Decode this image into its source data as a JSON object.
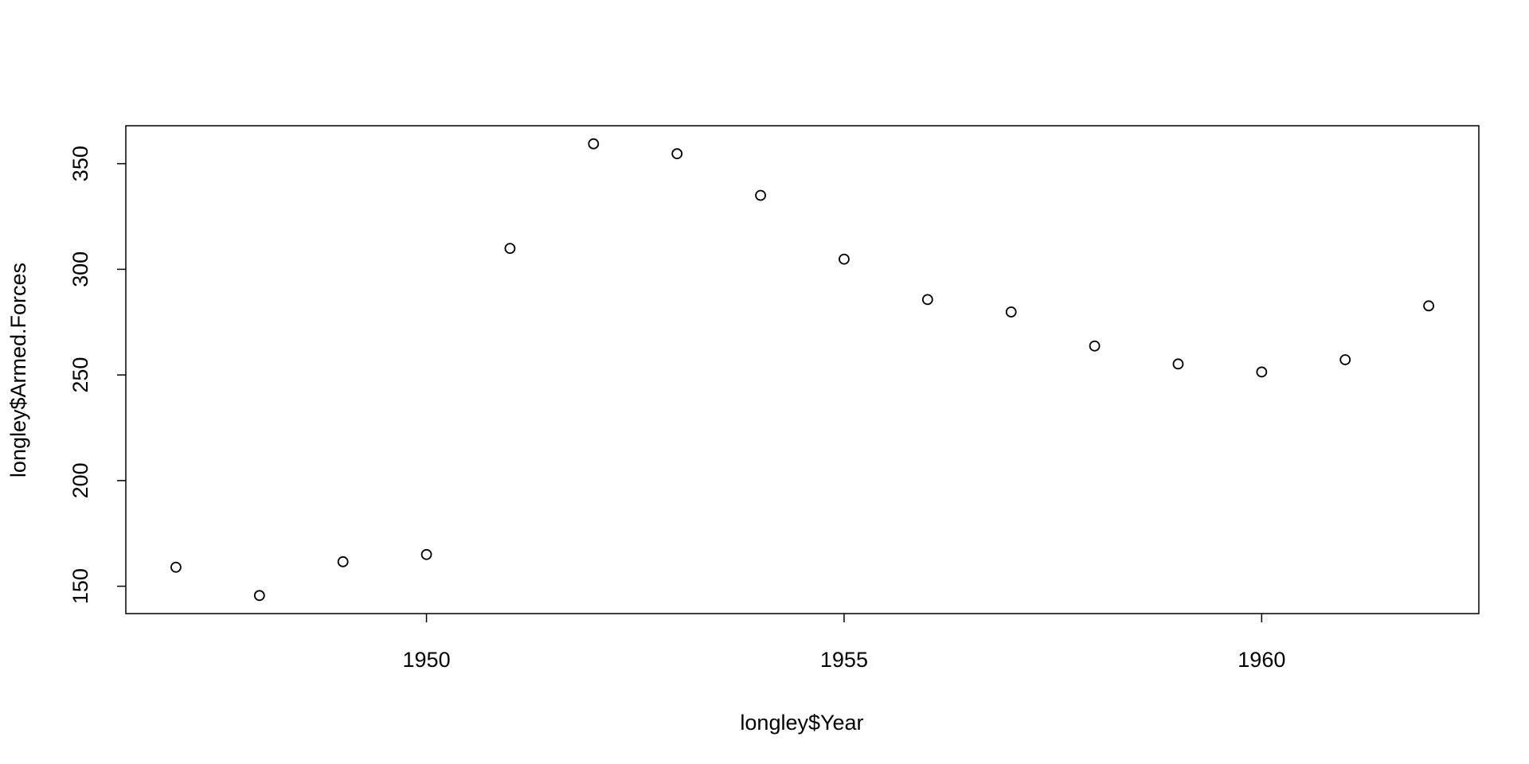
{
  "chart_data": {
    "type": "scatter",
    "x_label": "longley$Year",
    "y_label": "longley$Armed.Forces",
    "x": [
      1947,
      1948,
      1949,
      1950,
      1951,
      1952,
      1953,
      1954,
      1955,
      1956,
      1957,
      1958,
      1959,
      1960,
      1961,
      1962
    ],
    "values": [
      159.0,
      145.6,
      161.6,
      165.0,
      309.9,
      359.4,
      354.7,
      335.0,
      304.8,
      285.7,
      279.8,
      263.7,
      255.2,
      251.4,
      257.2,
      282.7
    ],
    "color": "#000000",
    "xlim": [
      1946.4,
      1962.6
    ],
    "ylim": [
      137.048,
      367.952
    ],
    "xticks": [
      1950,
      1955,
      1960
    ],
    "yticks": [
      150,
      200,
      250,
      300,
      350
    ],
    "grid": false
  }
}
